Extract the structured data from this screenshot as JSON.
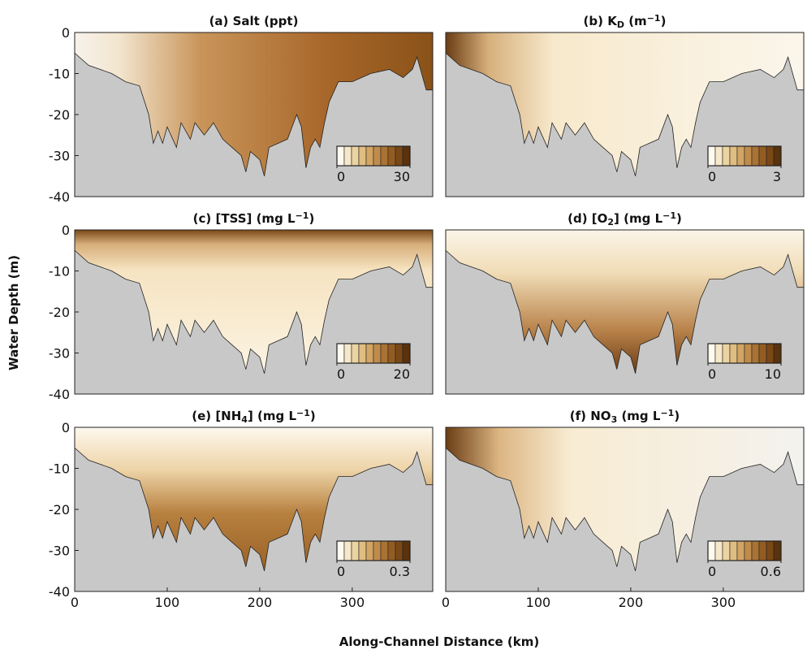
{
  "y_label": "Water Depth (m)",
  "x_label": "Along-Channel Distance (km)",
  "chart_data": [
    {
      "type": "contour",
      "title": [
        {
          "text": "(a) Salt (ppt)"
        }
      ],
      "xlim": [
        0,
        387
      ],
      "ylim": [
        -40,
        0
      ],
      "yticks": [
        0,
        -10,
        -20,
        -30,
        -40
      ],
      "colorbar": {
        "clim": [
          0,
          30
        ],
        "ticks": [
          0,
          30
        ],
        "colors": [
          "#fefaf0",
          "#f6e7c8",
          "#ecd3a2",
          "#e0bd80",
          "#d2a565",
          "#c08c4c",
          "#aa7234",
          "#935d22",
          "#7a4816",
          "#5a320c"
        ]
      }
    },
    {
      "type": "contour",
      "title": [
        {
          "text": "(b) K"
        },
        {
          "text": "D",
          "shift": "sub"
        },
        {
          "text": " (m"
        },
        {
          "text": "−1",
          "shift": "super"
        },
        {
          "text": ")"
        }
      ],
      "xlim": [
        0,
        387
      ],
      "ylim": [
        -40,
        0
      ],
      "colorbar": {
        "clim": [
          0,
          3
        ],
        "ticks": [
          0,
          3
        ],
        "colors": [
          "#fefaf0",
          "#f6e7c8",
          "#ecd3a2",
          "#e0bd80",
          "#d2a565",
          "#c08c4c",
          "#aa7234",
          "#935d22",
          "#7a4816",
          "#5a320c"
        ]
      }
    },
    {
      "type": "contour",
      "title": [
        {
          "text": "(c) [TSS] (mg L"
        },
        {
          "text": "−1",
          "shift": "super"
        },
        {
          "text": ")"
        }
      ],
      "xlim": [
        0,
        387
      ],
      "ylim": [
        -40,
        0
      ],
      "yticks": [
        0,
        -10,
        -20,
        -30,
        -40
      ],
      "colorbar": {
        "clim": [
          0,
          20
        ],
        "ticks": [
          0,
          20
        ],
        "colors": [
          "#fefaf0",
          "#f6e7c8",
          "#ecd3a2",
          "#e0bd80",
          "#d2a565",
          "#c08c4c",
          "#aa7234",
          "#935d22",
          "#7a4816",
          "#5a320c"
        ]
      }
    },
    {
      "type": "contour",
      "title": [
        {
          "text": "(d) [O"
        },
        {
          "text": "2",
          "shift": "sub"
        },
        {
          "text": "] (mg L"
        },
        {
          "text": "−1",
          "shift": "super"
        },
        {
          "text": ")"
        }
      ],
      "xlim": [
        0,
        387
      ],
      "ylim": [
        -40,
        0
      ],
      "colorbar": {
        "clim": [
          0,
          10
        ],
        "ticks": [
          0,
          10
        ],
        "colors": [
          "#fefaf0",
          "#f6e7c8",
          "#ecd3a2",
          "#e0bd80",
          "#d2a565",
          "#c08c4c",
          "#aa7234",
          "#935d22",
          "#7a4816",
          "#5a320c"
        ]
      }
    },
    {
      "type": "contour",
      "title": [
        {
          "text": "(e) [NH"
        },
        {
          "text": "4",
          "shift": "sub"
        },
        {
          "text": "] (mg L"
        },
        {
          "text": "−1",
          "shift": "super"
        },
        {
          "text": ")"
        }
      ],
      "xlim": [
        0,
        387
      ],
      "ylim": [
        -40,
        0
      ],
      "yticks": [
        0,
        -10,
        -20,
        -30,
        -40
      ],
      "xticks": [
        0,
        100,
        200,
        300
      ],
      "colorbar": {
        "clim": [
          0,
          0.3
        ],
        "ticks": [
          0,
          0.3
        ],
        "colors": [
          "#fefaf0",
          "#f6e7c8",
          "#ecd3a2",
          "#e0bd80",
          "#d2a565",
          "#c08c4c",
          "#aa7234",
          "#935d22",
          "#7a4816",
          "#5a320c"
        ]
      }
    },
    {
      "type": "contour",
      "title": [
        {
          "text": "(f) NO"
        },
        {
          "text": "3",
          "shift": "sub"
        },
        {
          "text": " (mg L"
        },
        {
          "text": "−1",
          "shift": "super"
        },
        {
          "text": ")"
        }
      ],
      "xlim": [
        0,
        387
      ],
      "ylim": [
        -40,
        0
      ],
      "xticks": [
        0,
        100,
        200,
        300
      ],
      "colorbar": {
        "clim": [
          0,
          0.6
        ],
        "ticks": [
          0,
          0.6
        ],
        "colors": [
          "#fefaf0",
          "#f6e7c8",
          "#ecd3a2",
          "#e0bd80",
          "#d2a565",
          "#c08c4c",
          "#aa7234",
          "#935d22",
          "#7a4816",
          "#5a320c"
        ]
      }
    }
  ]
}
